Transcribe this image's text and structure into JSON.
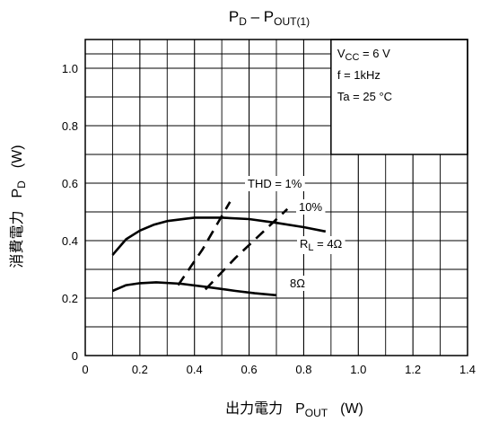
{
  "chart_data": {
    "type": "line",
    "title": {
      "main": "P",
      "main_sub": "D",
      "sep": " – P",
      "tail_sub": "OUT(1)"
    },
    "xlabel": {
      "jp": "出力電力",
      "sym": "P",
      "sym_sub": "OUT",
      "unit": "(W)"
    },
    "ylabel": {
      "jp": "消費電力",
      "sym": "P",
      "sym_sub": "D",
      "unit": "(W)"
    },
    "xlim": [
      0,
      1.4
    ],
    "ylim": [
      0,
      1.1
    ],
    "x_ticks": [
      "0",
      "0.2",
      "0.4",
      "0.6",
      "0.8",
      "1.0",
      "1.2",
      "1.4"
    ],
    "y_ticks": [
      "0",
      "0.2",
      "0.4",
      "0.6",
      "0.8",
      "1.0"
    ],
    "grid": true,
    "conditions": {
      "vcc": {
        "sym": "V",
        "sub": "CC",
        "val": " = 6 V"
      },
      "freq": "f = 1kHz",
      "temp": "Ta = 25 °C"
    },
    "series": [
      {
        "name": "RL = 4Ω",
        "style": "solid",
        "points": [
          [
            0.1,
            0.35
          ],
          [
            0.15,
            0.405
          ],
          [
            0.2,
            0.435
          ],
          [
            0.25,
            0.455
          ],
          [
            0.3,
            0.468
          ],
          [
            0.4,
            0.48
          ],
          [
            0.5,
            0.48
          ],
          [
            0.6,
            0.475
          ],
          [
            0.7,
            0.462
          ],
          [
            0.8,
            0.447
          ],
          [
            0.88,
            0.432
          ]
        ]
      },
      {
        "name": "8Ω",
        "style": "solid",
        "points": [
          [
            0.1,
            0.225
          ],
          [
            0.15,
            0.245
          ],
          [
            0.2,
            0.252
          ],
          [
            0.26,
            0.255
          ],
          [
            0.35,
            0.25
          ],
          [
            0.45,
            0.238
          ],
          [
            0.55,
            0.225
          ],
          [
            0.62,
            0.217
          ],
          [
            0.7,
            0.21
          ]
        ]
      },
      {
        "name": "THD = 1%",
        "style": "dashed",
        "points": [
          [
            0.34,
            0.245
          ],
          [
            0.43,
            0.37
          ],
          [
            0.53,
            0.535
          ]
        ]
      },
      {
        "name": "THD = 10%",
        "style": "dashed",
        "points": [
          [
            0.44,
            0.23
          ],
          [
            0.55,
            0.34
          ],
          [
            0.74,
            0.51
          ]
        ]
      }
    ],
    "annotations": {
      "thd1": "THD = 1%",
      "thd10": "10%",
      "rl": {
        "sym": "R",
        "sub": "L",
        "val": " = 4Ω"
      },
      "r8": "8Ω"
    }
  }
}
